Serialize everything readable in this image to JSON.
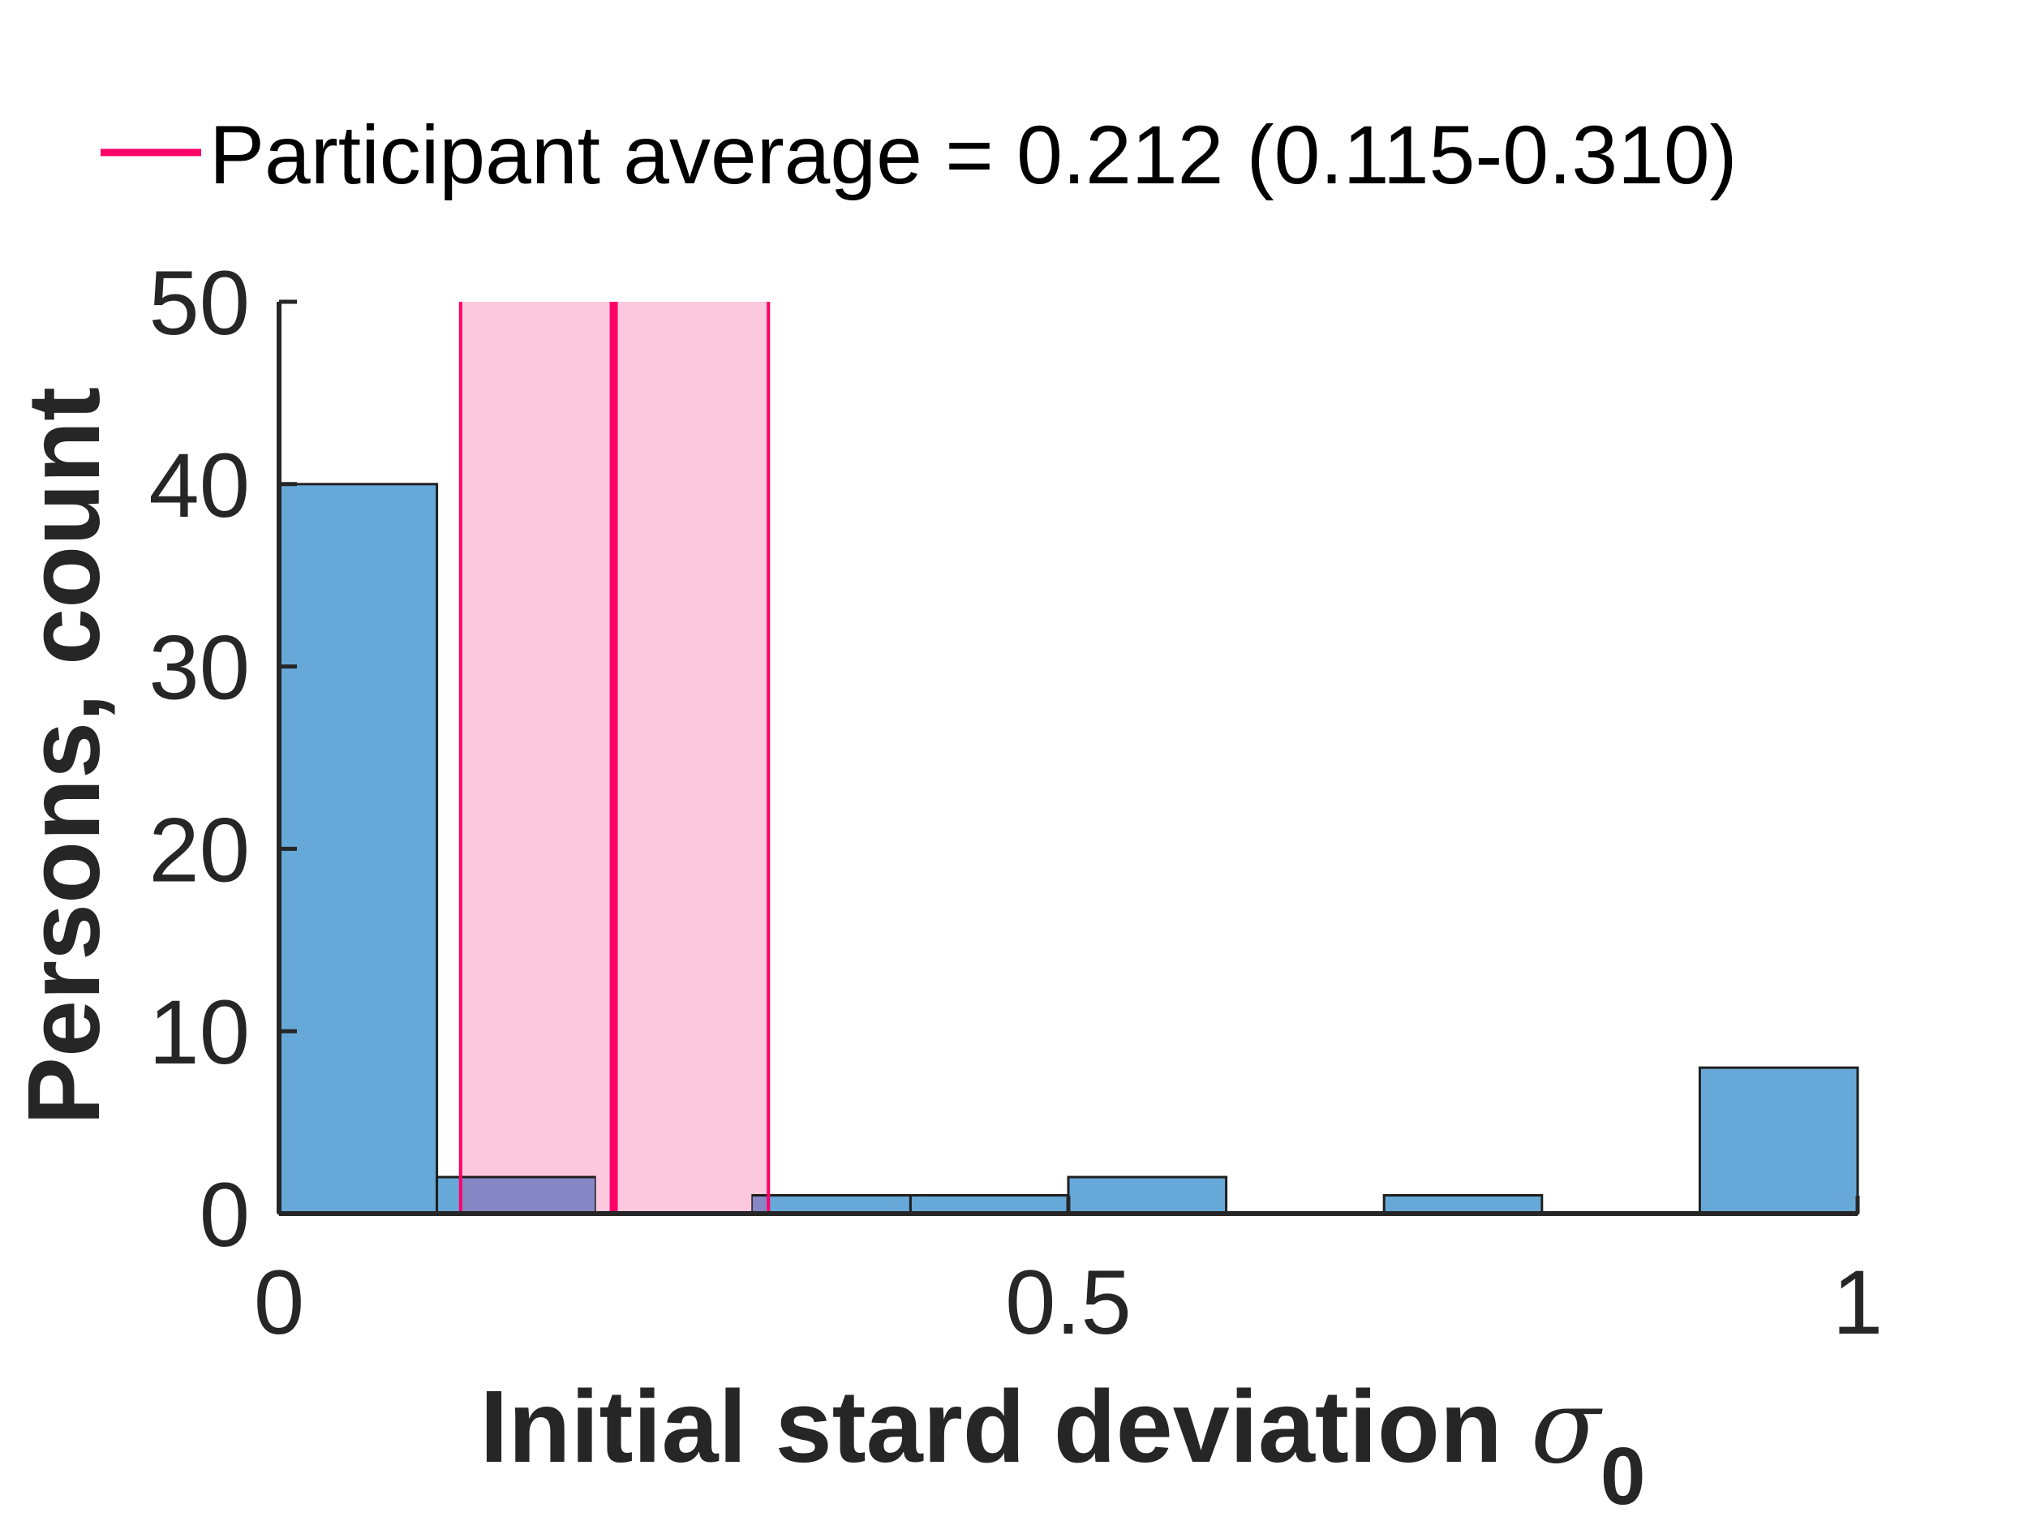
{
  "chart_data": {
    "type": "bar",
    "subtype": "histogram",
    "bin_edges": [
      0,
      0.1,
      0.2,
      0.3,
      0.4,
      0.5,
      0.6,
      0.7,
      0.8,
      0.9,
      1.0
    ],
    "values": [
      40,
      2,
      0,
      1,
      1,
      2,
      0,
      1,
      0,
      8
    ],
    "xlim": [
      0,
      1
    ],
    "ylim": [
      0,
      50
    ],
    "xticks": [
      0,
      0.5,
      1
    ],
    "xtick_labels": [
      "0",
      "0.5",
      "1"
    ],
    "yticks": [
      0,
      10,
      20,
      30,
      40,
      50
    ],
    "ytick_labels": [
      "0",
      "10",
      "20",
      "30",
      "40",
      "50"
    ],
    "xlabel_text": "Initial stard deviation ",
    "xlabel_symbol": "σ",
    "xlabel_subscript": "0",
    "ylabel": "Persons, count",
    "reference": {
      "mean": 0.212,
      "ci_low": 0.115,
      "ci_high": 0.31,
      "legend_label": "Participant average = 0.212 (0.115-0.310)"
    },
    "legend_position": "top",
    "grid": false,
    "colors": {
      "bar_fill": "#66a9d9",
      "bar_edge": "#1f1f1f",
      "mean_line": "#ff0066",
      "ci_band": "#fcc8de",
      "overlap_fill": "#8588c4",
      "axis": "#262626"
    }
  }
}
